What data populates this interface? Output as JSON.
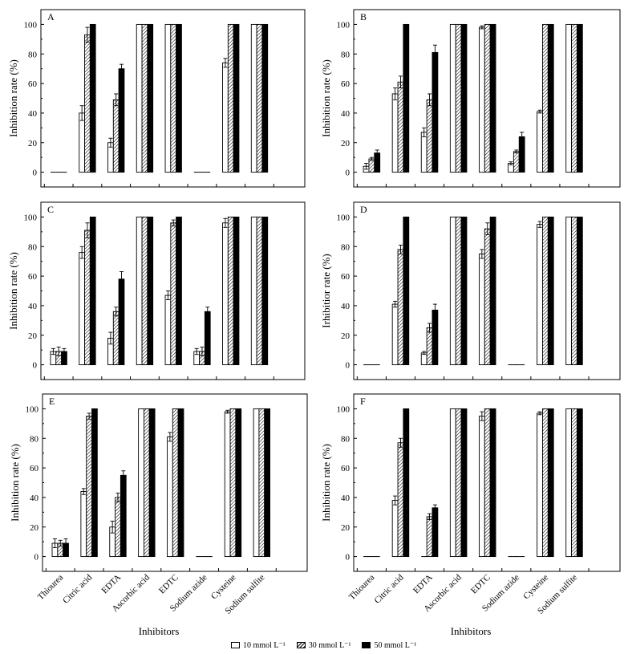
{
  "figure": {
    "x_title": "Inhibitors",
    "y_title": "Inhibition rate (%)",
    "y_title_alt_D": "Irhibitior rate (%)",
    "series_names": [
      "10 mmol L⁻¹",
      "30 mmol L⁻¹",
      "50 mmol L⁻¹"
    ],
    "fills": [
      "#ffffff",
      "hatched",
      "#000000"
    ],
    "colors": {
      "edge": "#000000",
      "background": "#ffffff"
    }
  },
  "legend": {
    "items": [
      "10 mmol L⁻¹",
      "30 mmol L⁻¹",
      "50 mmol L⁻¹"
    ]
  },
  "chart_data": [
    {
      "panel": "A",
      "type": "bar",
      "title": "A",
      "ylabel": "Inhibition rate (%)",
      "xlabel": "Inhibitors",
      "categories": [
        "Thiourea",
        "Citric acid",
        "EDTA",
        "Ascorbic acid",
        "EDTC",
        "Sodium azide",
        "Cysteine",
        "Sodium sulfite"
      ],
      "yticks": [
        0,
        20,
        40,
        60,
        80,
        100
      ],
      "ylim": [
        -10,
        110
      ],
      "series": [
        {
          "name": "10 mmol L⁻¹",
          "values": [
            0,
            40,
            20,
            100,
            100,
            0,
            74,
            100
          ],
          "errors": [
            0,
            5,
            3,
            0,
            0,
            0,
            3,
            0
          ]
        },
        {
          "name": "30 mmol L⁻¹",
          "values": [
            0,
            93,
            49,
            100,
            100,
            0,
            100,
            100
          ],
          "errors": [
            0,
            5,
            4,
            0,
            0,
            0,
            0,
            0
          ]
        },
        {
          "name": "50 mmol L⁻¹",
          "values": [
            0,
            100,
            70,
            100,
            100,
            0,
            100,
            100
          ],
          "errors": [
            0,
            0,
            3,
            0,
            0,
            0,
            0,
            0
          ]
        }
      ]
    },
    {
      "panel": "B",
      "type": "bar",
      "title": "B",
      "ylabel": "Inhibition rate (%)",
      "xlabel": "Inhibitors",
      "categories": [
        "Thiourea",
        "Citric acid",
        "EDTA",
        "Ascorbic acid",
        "EDTC",
        "Sodium azide",
        "Cysteine",
        "Sodium sulfite"
      ],
      "yticks": [
        0,
        20,
        40,
        60,
        80,
        100
      ],
      "ylim": [
        -10,
        110
      ],
      "series": [
        {
          "name": "10 mmol L⁻¹",
          "values": [
            4,
            53,
            27,
            100,
            98,
            6,
            41,
            100
          ],
          "errors": [
            2,
            4,
            3,
            0,
            1,
            1,
            1,
            0
          ]
        },
        {
          "name": "30 mmol L⁻¹",
          "values": [
            9,
            61,
            49,
            100,
            100,
            14,
            100,
            100
          ],
          "errors": [
            1,
            4,
            4,
            0,
            0,
            1,
            0,
            0
          ]
        },
        {
          "name": "50 mmol L⁻¹",
          "values": [
            13,
            100,
            81,
            100,
            100,
            24,
            100,
            100
          ],
          "errors": [
            2,
            0,
            5,
            0,
            0,
            3,
            0,
            0
          ]
        }
      ]
    },
    {
      "panel": "C",
      "type": "bar",
      "title": "C",
      "ylabel": "Inhibition rate (%)",
      "xlabel": "Inhibitors",
      "categories": [
        "Thiourea",
        "Citric acid",
        "EDTA",
        "Ascorbic acid",
        "EDTC",
        "Sodium azide",
        "Cysteine",
        "Sodium sulfite"
      ],
      "yticks": [
        0,
        20,
        40,
        60,
        80,
        100
      ],
      "ylim": [
        -10,
        110
      ],
      "series": [
        {
          "name": "10 mmol L⁻¹",
          "values": [
            9,
            76,
            18,
            100,
            47,
            9,
            96,
            100
          ],
          "errors": [
            2,
            4,
            4,
            0,
            3,
            2,
            3,
            0
          ]
        },
        {
          "name": "30 mmol L⁻¹",
          "values": [
            9,
            91,
            36,
            100,
            96,
            9,
            100,
            100
          ],
          "errors": [
            3,
            5,
            3,
            0,
            2,
            3,
            0,
            0
          ]
        },
        {
          "name": "50 mmol L⁻¹",
          "values": [
            9,
            100,
            58,
            100,
            100,
            36,
            100,
            100
          ],
          "errors": [
            2,
            0,
            5,
            0,
            0,
            3,
            0,
            0
          ]
        }
      ]
    },
    {
      "panel": "D",
      "type": "bar",
      "title": "D",
      "ylabel": "Irhibitior rate (%)",
      "xlabel": "Inhibitors",
      "categories": [
        "Thiourea",
        "Citric acid",
        "EDTA",
        "Ascorbic acid",
        "EDTC",
        "Sodium azide",
        "Cysteine",
        "Sodium sulfite"
      ],
      "yticks": [
        0,
        20,
        40,
        60,
        80,
        100
      ],
      "ylim": [
        -10,
        110
      ],
      "series": [
        {
          "name": "10 mmol L⁻¹",
          "values": [
            0,
            41,
            8,
            100,
            75,
            0,
            95,
            100
          ],
          "errors": [
            0,
            2,
            1,
            0,
            3,
            0,
            2,
            0
          ]
        },
        {
          "name": "30 mmol L⁻¹",
          "values": [
            0,
            78,
            25,
            100,
            92,
            0,
            100,
            100
          ],
          "errors": [
            0,
            3,
            3,
            0,
            4,
            0,
            0,
            0
          ]
        },
        {
          "name": "50 mmol L⁻¹",
          "values": [
            0,
            100,
            37,
            100,
            100,
            0,
            100,
            100
          ],
          "errors": [
            0,
            0,
            4,
            0,
            0,
            0,
            0,
            0
          ]
        }
      ]
    },
    {
      "panel": "E",
      "type": "bar",
      "title": "E",
      "ylabel": "Inhibition rate (%)",
      "xlabel": "Inhibitors",
      "categories": [
        "Thiourea",
        "Citric acid",
        "EDTA",
        "Ascorbic acid",
        "EDTC",
        "Sodium azide",
        "Cysteine",
        "Sodium sulfite"
      ],
      "yticks": [
        0,
        20,
        40,
        60,
        80,
        100
      ],
      "ylim": [
        -10,
        110
      ],
      "series": [
        {
          "name": "10 mmol L⁻¹",
          "values": [
            9,
            44,
            20,
            100,
            81,
            0,
            98,
            100
          ],
          "errors": [
            3,
            2,
            4,
            0,
            3,
            0,
            1,
            0
          ]
        },
        {
          "name": "30 mmol L⁻¹",
          "values": [
            9,
            95,
            40,
            100,
            100,
            0,
            100,
            100
          ],
          "errors": [
            2,
            2,
            3,
            0,
            0,
            0,
            0,
            0
          ]
        },
        {
          "name": "50 mmol L⁻¹",
          "values": [
            9,
            100,
            55,
            100,
            100,
            0,
            100,
            100
          ],
          "errors": [
            3,
            0,
            3,
            0,
            0,
            0,
            0,
            0
          ]
        }
      ]
    },
    {
      "panel": "F",
      "type": "bar",
      "title": "F",
      "ylabel": "Inhibition rate (%)",
      "xlabel": "Inhibitors",
      "categories": [
        "Thiourea",
        "Citric acid",
        "EDTA",
        "Ascorbic acid",
        "EDTC",
        "Sodium azide",
        "Cysteine",
        "Sodium sulfite"
      ],
      "yticks": [
        0,
        20,
        40,
        60,
        80,
        100
      ],
      "ylim": [
        -10,
        110
      ],
      "series": [
        {
          "name": "10 mmol L⁻¹",
          "values": [
            0,
            38,
            0,
            100,
            95,
            0,
            97,
            100
          ],
          "errors": [
            0,
            3,
            0,
            0,
            3,
            0,
            1,
            0
          ]
        },
        {
          "name": "30 mmol L⁻¹",
          "values": [
            0,
            77,
            27,
            100,
            100,
            0,
            100,
            100
          ],
          "errors": [
            0,
            3,
            2,
            0,
            0,
            0,
            0,
            0
          ]
        },
        {
          "name": "50 mmol L⁻¹",
          "values": [
            0,
            100,
            33,
            100,
            100,
            0,
            100,
            100
          ],
          "errors": [
            0,
            0,
            2,
            0,
            0,
            0,
            0,
            0
          ]
        }
      ]
    }
  ]
}
